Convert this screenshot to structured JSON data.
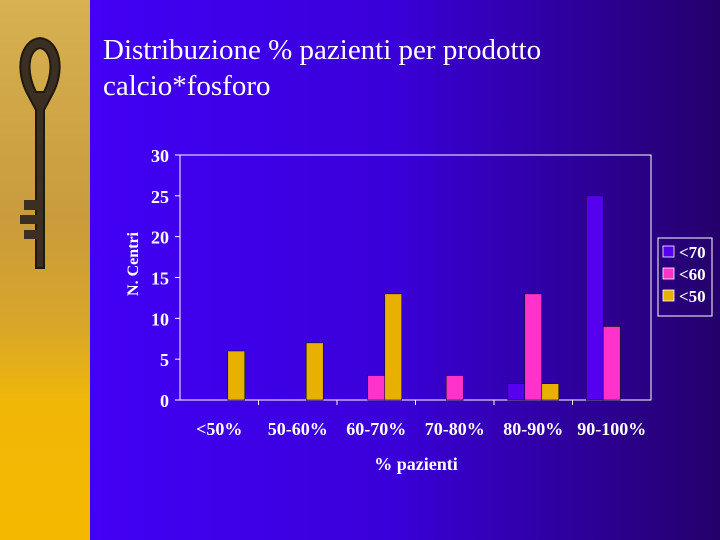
{
  "slide": {
    "title_lines": [
      "Distribuzione % pazienti per prodotto",
      "calcio*fosforo"
    ],
    "background_color": "#4400ff",
    "strip_color": "#d8a62a"
  },
  "icons": [
    "key-icon"
  ],
  "chart_data": {
    "type": "bar",
    "categories": [
      "<50%",
      "50-60%",
      "60-70%",
      "70-80%",
      "80-90%",
      "90-100%"
    ],
    "series": [
      {
        "name": "<70",
        "color": "#5500ee",
        "values": [
          0,
          0,
          0,
          0,
          2,
          25
        ]
      },
      {
        "name": "<60",
        "color": "#ff33cc",
        "values": [
          0,
          0,
          3,
          3,
          13,
          9
        ]
      },
      {
        "name": "<50",
        "color": "#e8b000",
        "values": [
          6,
          7,
          13,
          0,
          2,
          0
        ]
      }
    ],
    "title": "",
    "xlabel": "% pazienti",
    "ylabel": "N. Centri",
    "ylim": [
      0,
      30
    ],
    "yticks": [
      0,
      5,
      10,
      15,
      20,
      25,
      30
    ],
    "grid": false,
    "legend": "right"
  }
}
